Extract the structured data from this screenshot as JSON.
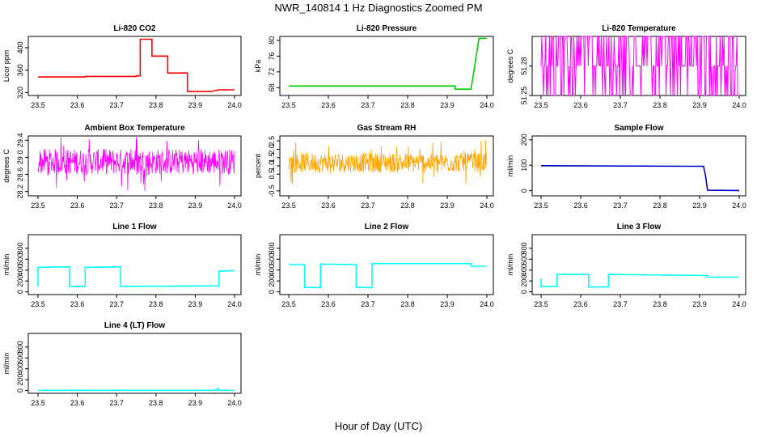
{
  "figure": {
    "title": "NWR_140814  1 Hz Diagnostics Zoomed PM",
    "xlabel": "Hour of Day (UTC)"
  },
  "chart_data": [
    {
      "type": "line",
      "title": "Li-820 CO2",
      "ylabel": "Licor ppm",
      "color": "#ff0000",
      "xlim": [
        23.5,
        24.0
      ],
      "ylim": [
        315,
        420
      ],
      "xticks": [
        "23.5",
        "23.6",
        "23.7",
        "23.8",
        "23.9",
        "24.0"
      ],
      "yticks": [
        "320",
        "360",
        "400"
      ],
      "series": [
        {
          "x": [
            23.5,
            23.62,
            23.62,
            23.75,
            23.75,
            23.76,
            23.76,
            23.79,
            23.79,
            23.83,
            23.83,
            23.88,
            23.88,
            23.94,
            23.94,
            23.96,
            23.96,
            24.0
          ],
          "y": [
            348,
            348,
            349,
            349,
            350,
            350,
            415,
            415,
            385,
            385,
            355,
            355,
            322,
            322,
            322,
            325,
            325,
            325
          ]
        }
      ]
    },
    {
      "type": "line",
      "title": "Li-820 Pressure",
      "ylabel": "kPa",
      "color": "#00cc00",
      "xlim": [
        23.5,
        24.0
      ],
      "ylim": [
        66,
        81
      ],
      "xticks": [
        "23.5",
        "23.6",
        "23.7",
        "23.8",
        "23.9",
        "24.0"
      ],
      "yticks": [
        "68",
        "72",
        "76",
        "80"
      ],
      "series": [
        {
          "x": [
            23.5,
            23.92,
            23.92,
            23.96,
            23.97,
            23.98,
            24.0
          ],
          "y": [
            68.4,
            68.4,
            67.6,
            67.6,
            74,
            80.5,
            80.5
          ]
        }
      ]
    },
    {
      "type": "line",
      "title": "Li-820 Temperature",
      "ylabel": "degrees C",
      "color": "#ff00ff",
      "xlim": [
        23.5,
        24.0
      ],
      "ylim": [
        51.25,
        51.31
      ],
      "xticks": [
        "23.5",
        "23.6",
        "23.7",
        "23.8",
        "23.9",
        "24.0"
      ],
      "yticks": [
        "51.25",
        "51.28"
      ],
      "pattern": "binary-toggle",
      "levels": [
        51.25,
        51.28,
        51.31
      ]
    },
    {
      "type": "line",
      "title": "Ambient Box Temperature",
      "ylabel": "degrees C",
      "color": "#ff00ff",
      "xlim": [
        23.5,
        24.0
      ],
      "ylim": [
        28.1,
        29.5
      ],
      "xticks": [
        "23.5",
        "23.6",
        "23.7",
        "23.8",
        "23.9",
        "24.0"
      ],
      "yticks": [
        "28.2",
        "28.6",
        "29.0",
        "29.4"
      ],
      "pattern": "noise",
      "center": 28.9,
      "spread": 0.3
    },
    {
      "type": "line",
      "title": "Gas Stream RH",
      "ylabel": "percent",
      "color": "#ffa500",
      "xlim": [
        23.5,
        24.0
      ],
      "ylim": [
        -0.8,
        2.8
      ],
      "xticks": [
        "23.5",
        "23.6",
        "23.7",
        "23.8",
        "23.9",
        "24.0"
      ],
      "yticks": [
        "-0.5",
        "0.5",
        "1.0",
        "1.5",
        "2.0",
        "2.5"
      ],
      "pattern": "noise",
      "center": 1.2,
      "spread": 0.6
    },
    {
      "type": "line",
      "title": "Sample Flow",
      "ylabel": "ml/min",
      "color": "#0000cc",
      "xlim": [
        23.5,
        24.0
      ],
      "ylim": [
        -20,
        215
      ],
      "xticks": [
        "23.5",
        "23.6",
        "23.7",
        "23.8",
        "23.9",
        "24.0"
      ],
      "yticks": [
        "0",
        "100",
        "200"
      ],
      "series": [
        {
          "x": [
            23.5,
            23.91,
            23.915,
            23.92,
            24.0
          ],
          "y": [
            98,
            96,
            60,
            2,
            1
          ]
        }
      ]
    },
    {
      "type": "line",
      "title": "Line 1 Flow",
      "ylabel": "ml/min",
      "color": "#00ffff",
      "xlim": [
        23.5,
        24.0
      ],
      "ylim": [
        -50,
        1050
      ],
      "xticks": [
        "23.5",
        "23.6",
        "23.7",
        "23.8",
        "23.9",
        "24.0"
      ],
      "yticks": [
        "0",
        "200",
        "400",
        "600",
        "800"
      ],
      "series": [
        {
          "x": [
            23.5,
            23.5,
            23.58,
            23.58,
            23.62,
            23.62,
            23.71,
            23.71,
            23.96,
            23.96,
            24.0
          ],
          "y": [
            100,
            450,
            460,
            100,
            100,
            450,
            460,
            100,
            110,
            380,
            390
          ]
        }
      ]
    },
    {
      "type": "line",
      "title": "Line 2 Flow",
      "ylabel": "ml/min",
      "color": "#00ffff",
      "xlim": [
        23.5,
        24.0
      ],
      "ylim": [
        -50,
        1050
      ],
      "xticks": [
        "23.5",
        "23.6",
        "23.7",
        "23.8",
        "23.9",
        "24.0"
      ],
      "yticks": [
        "0",
        "200",
        "400",
        "600",
        "800"
      ],
      "series": [
        {
          "x": [
            23.5,
            23.54,
            23.54,
            23.58,
            23.58,
            23.67,
            23.67,
            23.71,
            23.71,
            23.96,
            23.96,
            24.0
          ],
          "y": [
            500,
            500,
            80,
            80,
            510,
            500,
            80,
            80,
            520,
            520,
            470,
            470
          ]
        }
      ]
    },
    {
      "type": "line",
      "title": "Line 3 Flow",
      "ylabel": "ml/min",
      "color": "#00ffff",
      "xlim": [
        23.5,
        24.0
      ],
      "ylim": [
        -50,
        1050
      ],
      "xticks": [
        "23.5",
        "23.6",
        "23.7",
        "23.8",
        "23.9",
        "24.0"
      ],
      "yticks": [
        "0",
        "200",
        "400",
        "600",
        "800"
      ],
      "series": [
        {
          "x": [
            23.5,
            23.5,
            23.5,
            23.54,
            23.54,
            23.62,
            23.62,
            23.67,
            23.67,
            23.92,
            23.92,
            24.0
          ],
          "y": [
            250,
            100,
            100,
            100,
            320,
            320,
            90,
            90,
            320,
            300,
            270,
            270
          ]
        }
      ]
    },
    {
      "type": "line",
      "title": "Line 4 (LT) Flow",
      "ylabel": "ml/min",
      "color": "#00ffff",
      "xlim": [
        23.5,
        24.0
      ],
      "ylim": [
        -50,
        1050
      ],
      "xticks": [
        "23.5",
        "23.6",
        "23.7",
        "23.8",
        "23.9",
        "24.0"
      ],
      "yticks": [
        "0",
        "200",
        "400",
        "600",
        "800"
      ],
      "series": [
        {
          "x": [
            23.5,
            23.955,
            23.958,
            23.962,
            24.0
          ],
          "y": [
            5,
            5,
            40,
            5,
            5
          ]
        }
      ]
    }
  ]
}
